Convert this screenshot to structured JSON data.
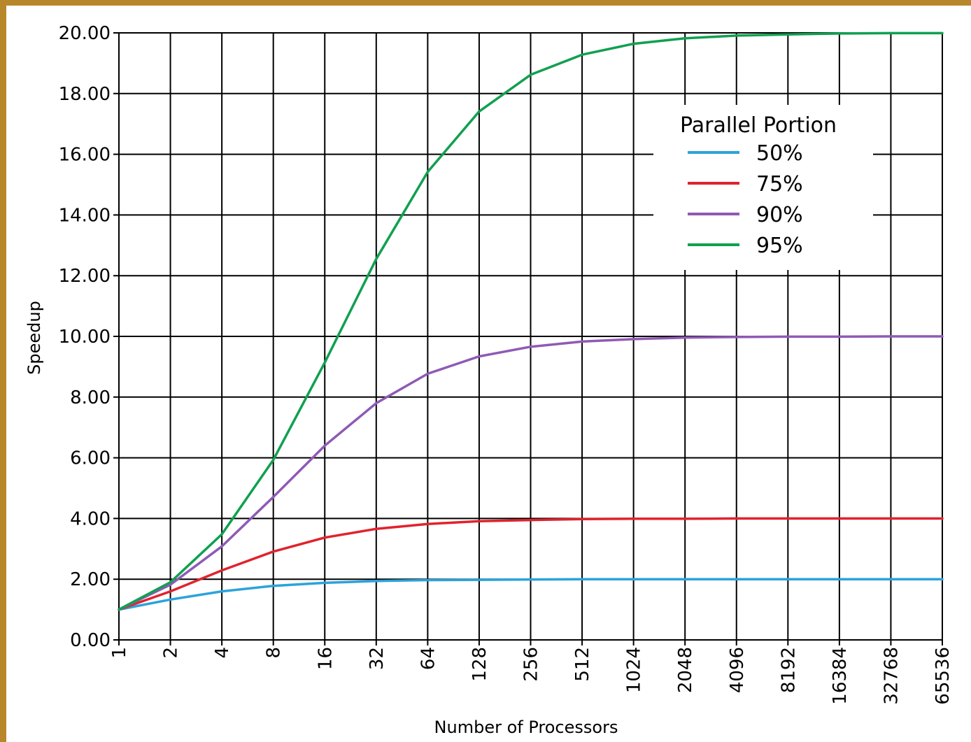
{
  "chart_data": {
    "type": "line",
    "title": "",
    "xlabel": "Number of Processors",
    "ylabel": "Speedup",
    "x_scale": "log2",
    "x": [
      1,
      2,
      4,
      8,
      16,
      32,
      64,
      128,
      256,
      512,
      1024,
      2048,
      4096,
      8192,
      16384,
      32768,
      65536
    ],
    "x_tick_labels": [
      "1",
      "2",
      "4",
      "8",
      "16",
      "32",
      "64",
      "128",
      "256",
      "512",
      "1024",
      "2048",
      "4096",
      "8192",
      "16384",
      "32768",
      "65536"
    ],
    "y_tick_labels": [
      "0.00",
      "2.00",
      "4.00",
      "6.00",
      "8.00",
      "10.00",
      "12.00",
      "14.00",
      "16.00",
      "18.00",
      "20.00"
    ],
    "ylim": [
      0,
      20
    ],
    "grid": true,
    "legend": {
      "title": "Parallel Portion",
      "placement": "top-right"
    },
    "series": [
      {
        "name": "50%",
        "color": "#2ba3dc",
        "values": [
          1.0,
          1.33,
          1.6,
          1.78,
          1.88,
          1.94,
          1.97,
          1.98,
          1.99,
          2.0,
          2.0,
          2.0,
          2.0,
          2.0,
          2.0,
          2.0,
          2.0
        ]
      },
      {
        "name": "75%",
        "color": "#e0232e",
        "values": [
          1.0,
          1.6,
          2.29,
          2.91,
          3.37,
          3.66,
          3.82,
          3.91,
          3.95,
          3.98,
          3.99,
          3.99,
          4.0,
          4.0,
          4.0,
          4.0,
          4.0
        ]
      },
      {
        "name": "90%",
        "color": "#8f5ab5",
        "values": [
          1.0,
          1.82,
          3.08,
          4.71,
          6.4,
          7.8,
          8.77,
          9.34,
          9.66,
          9.83,
          9.91,
          9.96,
          9.98,
          9.99,
          9.99,
          10.0,
          10.0
        ]
      },
      {
        "name": "95%",
        "color": "#10a050",
        "values": [
          1.0,
          1.9,
          3.48,
          5.93,
          9.14,
          12.55,
          15.42,
          17.41,
          18.62,
          19.28,
          19.64,
          19.82,
          19.91,
          19.95,
          19.98,
          19.99,
          19.99
        ]
      }
    ]
  }
}
